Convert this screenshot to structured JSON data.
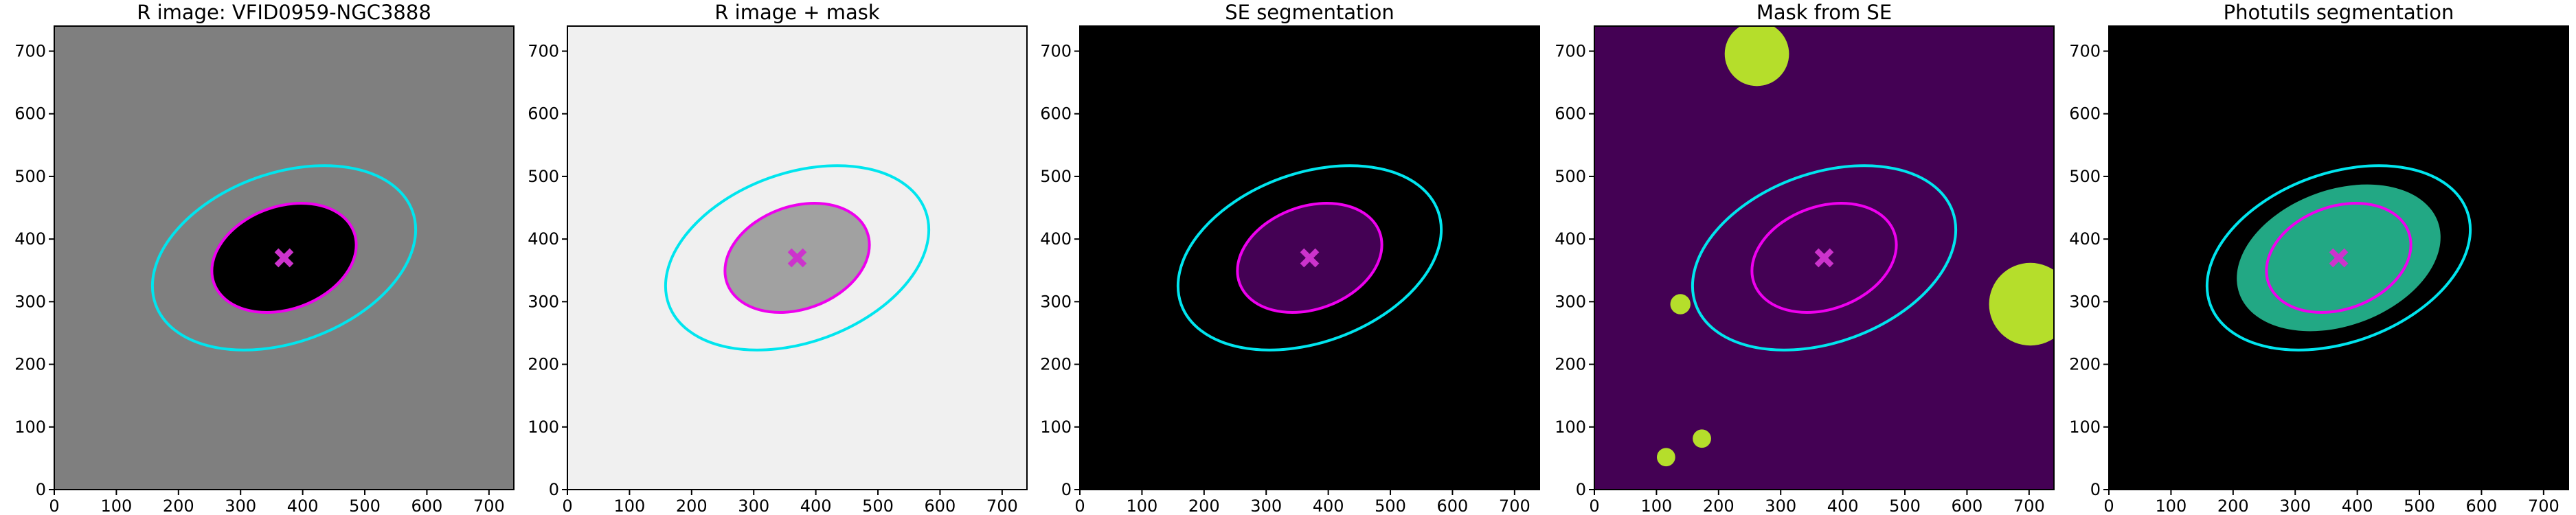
{
  "chart_data": [
    {
      "type": "image",
      "title": "R image: VFID0959-NGC3888",
      "background": "#7f7f7f",
      "blob": "#000000",
      "xlim": [
        0,
        740
      ],
      "ylim": [
        0,
        740
      ],
      "xticks": [
        0,
        100,
        200,
        300,
        400,
        500,
        600,
        700
      ],
      "yticks": [
        0,
        100,
        200,
        300,
        400,
        500,
        600,
        700
      ],
      "center": [
        370,
        370
      ],
      "marker_color": "#cc33cc",
      "ellipses": [
        {
          "color": "#00e5ee",
          "a": 220,
          "b": 135,
          "angle": 20
        },
        {
          "color": "#ee00ee",
          "a": 120,
          "b": 82,
          "angle": 20
        }
      ]
    },
    {
      "type": "image",
      "title": "R image + mask",
      "background": "#f0f0f0",
      "blob": "#606060",
      "xlim": [
        0,
        740
      ],
      "ylim": [
        0,
        740
      ],
      "xticks": [
        0,
        100,
        200,
        300,
        400,
        500,
        600,
        700
      ],
      "yticks": [
        0,
        100,
        200,
        300,
        400,
        500,
        600,
        700
      ],
      "center": [
        370,
        370
      ],
      "marker_color": "#cc33cc",
      "ellipses": [
        {
          "color": "#00e5ee",
          "a": 220,
          "b": 135,
          "angle": 20
        },
        {
          "color": "#ee00ee",
          "a": 120,
          "b": 82,
          "angle": 20
        }
      ]
    },
    {
      "type": "image",
      "title": "SE segmentation",
      "background": "#000000",
      "blob": "#440154",
      "xlim": [
        0,
        740
      ],
      "ylim": [
        0,
        740
      ],
      "xticks": [
        0,
        100,
        200,
        300,
        400,
        500,
        600,
        700
      ],
      "yticks": [
        0,
        100,
        200,
        300,
        400,
        500,
        600,
        700
      ],
      "center": [
        370,
        370
      ],
      "marker_color": "#cc33cc",
      "ellipses": [
        {
          "color": "#00e5ee",
          "a": 220,
          "b": 135,
          "angle": 20
        },
        {
          "color": "#ee00ee",
          "a": 120,
          "b": 82,
          "angle": 20
        }
      ]
    },
    {
      "type": "image",
      "title": "Mask from SE",
      "background": "#440154",
      "blob": "#b5de2b",
      "xlim": [
        0,
        740
      ],
      "ylim": [
        0,
        740
      ],
      "xticks": [
        0,
        100,
        200,
        300,
        400,
        500,
        600,
        700
      ],
      "yticks": [
        0,
        100,
        200,
        300,
        400,
        500,
        600,
        700
      ],
      "center": [
        370,
        370
      ],
      "marker_color": "#cc33cc",
      "ellipses": [
        {
          "color": "#00e5ee",
          "a": 220,
          "b": 135,
          "angle": 20
        },
        {
          "color": "#ee00ee",
          "a": 120,
          "b": 82,
          "angle": 20
        }
      ]
    },
    {
      "type": "image",
      "title": "Photutils segmentation",
      "background": "#000000",
      "blob": "#22a884",
      "xlim": [
        0,
        740
      ],
      "ylim": [
        0,
        740
      ],
      "xticks": [
        0,
        100,
        200,
        300,
        400,
        500,
        600,
        700
      ],
      "yticks": [
        0,
        100,
        200,
        300,
        400,
        500,
        600,
        700
      ],
      "center": [
        370,
        370
      ],
      "marker_color": "#cc33cc",
      "ellipses": [
        {
          "color": "#00e5ee",
          "a": 220,
          "b": 135,
          "angle": 20
        },
        {
          "color": "#ee00ee",
          "a": 120,
          "b": 82,
          "angle": 20
        }
      ]
    }
  ]
}
